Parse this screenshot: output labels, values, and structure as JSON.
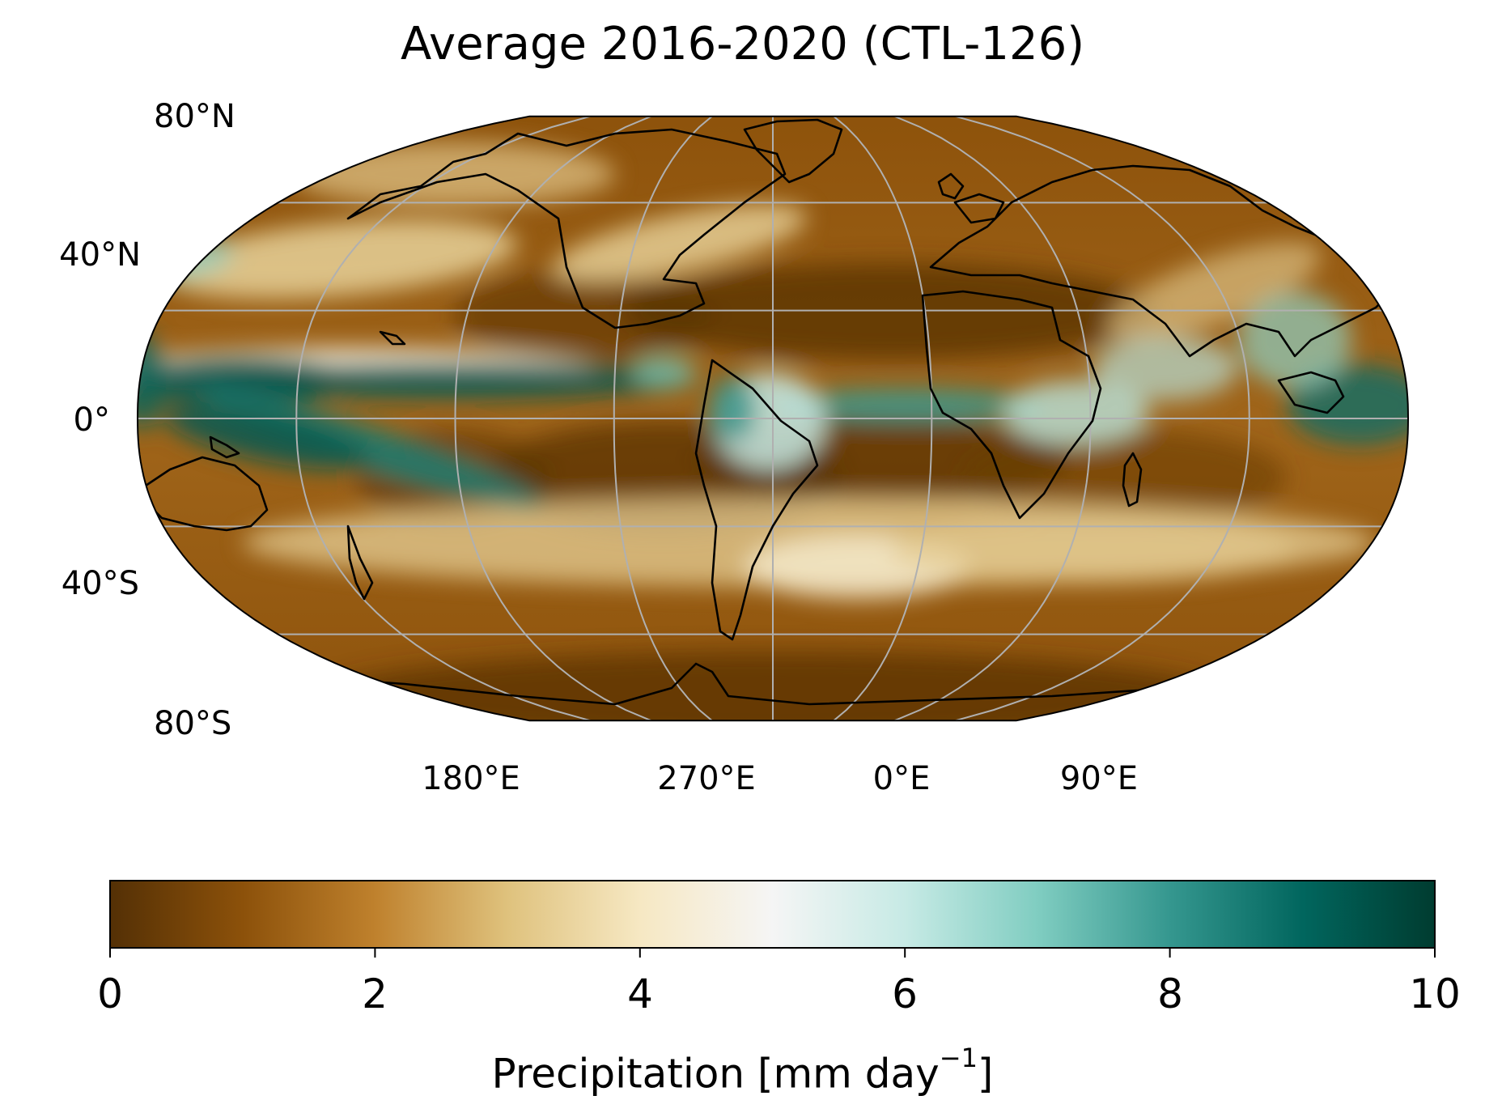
{
  "title": "Average 2016-2020 (CTL-126)",
  "map": {
    "projection": "Robinson",
    "variable": "precipitation",
    "lat_labels": [
      "80°N",
      "40°N",
      "0°",
      "40°S",
      "80°S"
    ],
    "lon_labels": [
      "180°E",
      "270°E",
      "0°E",
      "90°E"
    ],
    "features": [
      "coastlines",
      "gridlines"
    ],
    "gridline_color": "#b0b0b0",
    "coastline_color": "#000000"
  },
  "colorbar": {
    "colormap": "BrBG",
    "vmin": 0,
    "vmax": 10,
    "ticks": [
      "0",
      "2",
      "4",
      "6",
      "8",
      "10"
    ],
    "label_text": "Precipitation [mm day",
    "label_superscript": "−1",
    "label_close": "]",
    "stops": [
      "#543005",
      "#8c510a",
      "#bf812d",
      "#dfc27d",
      "#f6e8c3",
      "#f5f5f5",
      "#c7eae5",
      "#80cdc1",
      "#35978f",
      "#01665e",
      "#003c30"
    ]
  }
}
